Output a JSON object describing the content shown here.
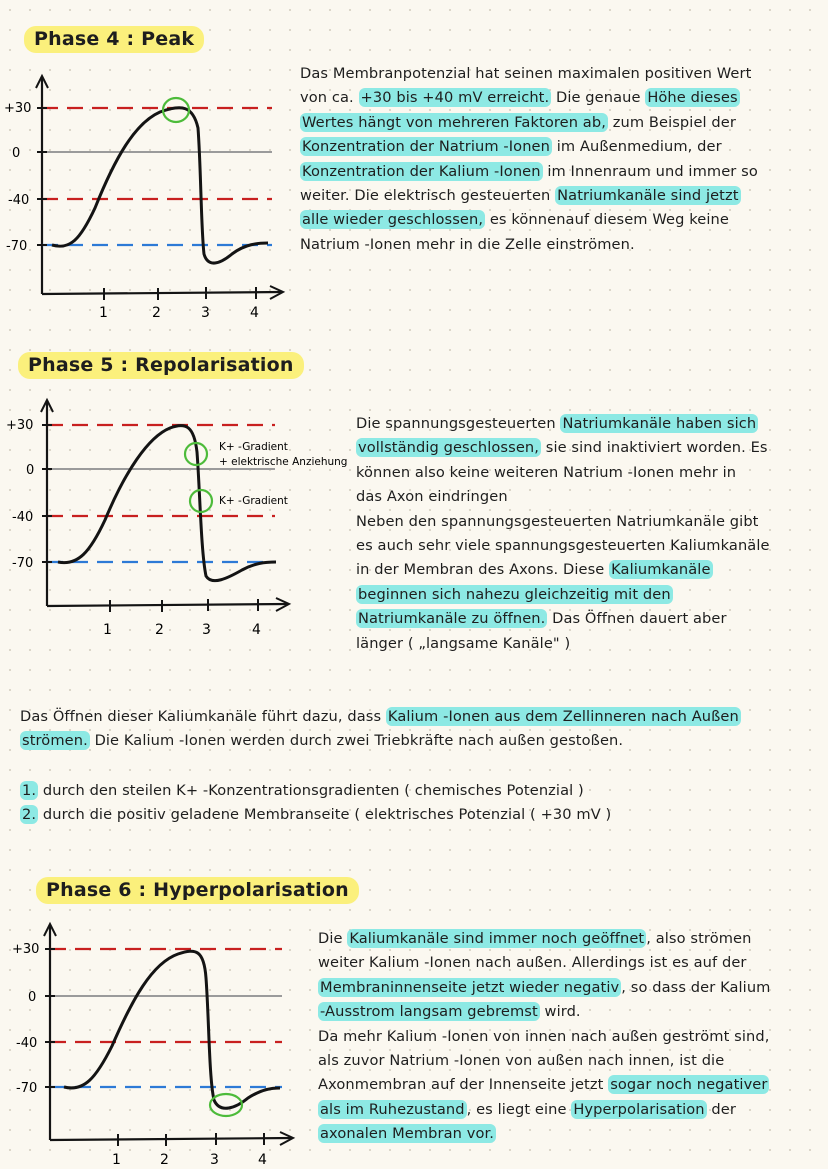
{
  "graph": {
    "y_labels": [
      "+30",
      "0",
      "-40",
      "-70"
    ],
    "x_labels": [
      "1",
      "2",
      "3",
      "4"
    ],
    "colors": {
      "threshold": "#c8201f",
      "rest": "#2d7ad6",
      "zero": "#9b9b9b",
      "curve": "#141414",
      "marker": "#4dbb3a"
    }
  },
  "phase4": {
    "title": "Phase 4 : Peak",
    "lines": [
      [
        {
          "t": "Das Membranpotenzial hat seinen maximalen positiven Wert"
        }
      ],
      [
        {
          "t": "von ca. "
        },
        {
          "t": "+30 bis +40 mV erreicht.",
          "hl": true
        },
        {
          "t": " Die genaue "
        },
        {
          "t": "Höhe dieses",
          "hl": true
        }
      ],
      [
        {
          "t": "Wertes hängt von mehreren Faktoren ab,",
          "hl": true
        },
        {
          "t": " zum Beispiel der"
        }
      ],
      [
        {
          "t": "Konzentration der Natrium -Ionen",
          "hl": true
        },
        {
          "t": " im Außenmedium, der"
        }
      ],
      [
        {
          "t": "Konzentration der Kalium -Ionen",
          "hl": true
        },
        {
          "t": " im Innenraum und immer so"
        }
      ],
      [
        {
          "t": "weiter. Die elektrisch gesteuerten "
        },
        {
          "t": "Natriumkanäle sind jetzt",
          "hl": true
        }
      ],
      [
        {
          "t": "alle wieder geschlossen,",
          "hl": true
        },
        {
          "t": " es könnenauf diesem Weg keine"
        }
      ],
      [
        {
          "t": "Natrium -Ionen mehr in die Zelle einströmen."
        }
      ]
    ]
  },
  "phase5": {
    "title": "Phase 5 : Repolarisation",
    "annotations": {
      "upper_line1": "K+ -Gradient",
      "upper_line2": "+ elektrische Anziehung",
      "lower": "K+ -Gradient"
    },
    "lines": [
      [
        {
          "t": "Die spannungsgesteuerten "
        },
        {
          "t": "Natriumkanäle haben sich",
          "hl": true
        }
      ],
      [
        {
          "t": "vollständig geschlossen,",
          "hl": true
        },
        {
          "t": " sie sind inaktiviert worden. Es"
        }
      ],
      [
        {
          "t": "können also keine weiteren Natrium -Ionen mehr in"
        }
      ],
      [
        {
          "t": "das Axon eindringen"
        }
      ],
      [
        {
          "t": " "
        }
      ],
      [
        {
          "t": "Neben den spannungsgesteuerten Natriumkanäle gibt"
        }
      ],
      [
        {
          "t": "es auch sehr viele spannungsgesteuerten Kaliumkanäle"
        }
      ],
      [
        {
          "t": "in der Membran des Axons. Diese "
        },
        {
          "t": "Kaliumkanäle",
          "hl": true
        }
      ],
      [
        {
          "t": "beginnen sich nahezu gleichzeitig mit den",
          "hl": true
        }
      ],
      [
        {
          "t": "Natriumkanäle zu öffnen.",
          "hl": true
        },
        {
          "t": " Das Öffnen dauert aber"
        }
      ],
      [
        {
          "t": "länger ( „langsame Kanäle\" )"
        }
      ]
    ],
    "full_lines": [
      [
        {
          "t": "Das Öffnen dieser Kaliumkanäle führt dazu, dass "
        },
        {
          "t": "Kalium -Ionen aus dem Zellinneren nach Außen",
          "hl": true
        }
      ],
      [
        {
          "t": "strömen.",
          "hl": true
        },
        {
          "t": " Die Kalium -Ionen werden durch zwei Triebkräfte nach außen gestoßen."
        }
      ]
    ],
    "list": [
      [
        {
          "t": "1.",
          "hl": true
        },
        {
          "t": " durch den steilen K+ -Konzentrationsgradienten ( chemisches Potenzial )"
        }
      ],
      [
        {
          "t": "2.",
          "hl": true
        },
        {
          "t": " durch die positiv geladene Membranseite ( elektrisches Potenzial ( +30 mV )"
        }
      ]
    ]
  },
  "phase6": {
    "title": "Phase 6 : Hyperpolarisation",
    "lines": [
      [
        {
          "t": "Die "
        },
        {
          "t": "Kaliumkanäle sind immer noch geöffnet",
          "hl": true
        },
        {
          "t": ", also strömen"
        }
      ],
      [
        {
          "t": "weiter Kalium -Ionen nach außen. Allerdings ist es auf der"
        }
      ],
      [
        {
          "t": "Membraninnenseite jetzt wieder negativ",
          "hl": true
        },
        {
          "t": ", so dass der Kalium"
        }
      ],
      [
        {
          "t": "-Ausstrom langsam gebremst",
          "hl": true
        },
        {
          "t": " wird."
        }
      ],
      [
        {
          "t": "Da mehr Kalium -Ionen von innen nach außen geströmt sind,"
        }
      ],
      [
        {
          "t": "als zuvor Natrium -Ionen von außen nach innen, ist die"
        }
      ],
      [
        {
          "t": "Axonmembran auf der Innenseite jetzt "
        },
        {
          "t": "sogar noch negativer",
          "hl": true
        }
      ],
      [
        {
          "t": "als im Ruhezustand",
          "hl": true
        },
        {
          "t": ", es liegt eine "
        },
        {
          "t": "Hyperpolarisation",
          "hl": true
        },
        {
          "t": " der"
        }
      ],
      [
        {
          "t": "axonalen Membran vor.",
          "hl": true
        }
      ]
    ]
  }
}
